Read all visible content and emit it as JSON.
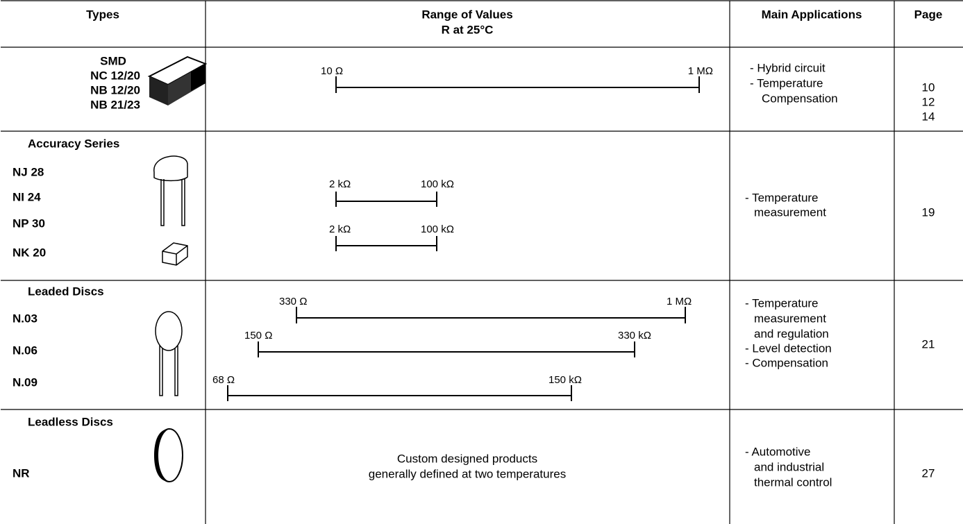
{
  "table": {
    "headers": [
      "Types",
      "Range of Values",
      "Main Applications",
      "Page"
    ],
    "header_sub": "R at 25°C",
    "rows": [
      {
        "group": "SMD",
        "types": [
          "NC 12/20",
          "NB 12/20",
          "NB 21/23"
        ],
        "ranges": [
          {
            "min": "10 Ω",
            "max": "1 MΩ"
          }
        ],
        "applications": [
          "- Hybrid circuit",
          "- Temperature",
          "Compensation"
        ],
        "pages": [
          "10",
          "12",
          "14"
        ]
      },
      {
        "group": "Accuracy Series",
        "types": [
          "NJ 28",
          "NI 24",
          "NP 30",
          "NK 20"
        ],
        "ranges": [
          {
            "min": "2 kΩ",
            "max": "100 kΩ"
          },
          {
            "min": "2 kΩ",
            "max": "100 kΩ"
          }
        ],
        "applications": [
          "- Temperature",
          "measurement"
        ],
        "pages": [
          "19"
        ]
      },
      {
        "group": "Leaded Discs",
        "types": [
          "N.03",
          "N.06",
          "N.09"
        ],
        "ranges": [
          {
            "min": "330 Ω",
            "max": "1 MΩ"
          },
          {
            "min": "150 Ω",
            "max": "330 kΩ"
          },
          {
            "min": "68 Ω",
            "max": "150 kΩ"
          }
        ],
        "applications": [
          "- Temperature",
          "measurement",
          "and regulation",
          "- Level detection",
          "- Compensation"
        ],
        "pages": [
          "21"
        ]
      },
      {
        "group": "Leadless Discs",
        "types": [
          "NR"
        ],
        "note": [
          "Custom designed products",
          "generally defined at two temperatures"
        ],
        "applications": [
          "- Automotive",
          "and industrial",
          "thermal control"
        ],
        "pages": [
          "27"
        ]
      }
    ]
  }
}
